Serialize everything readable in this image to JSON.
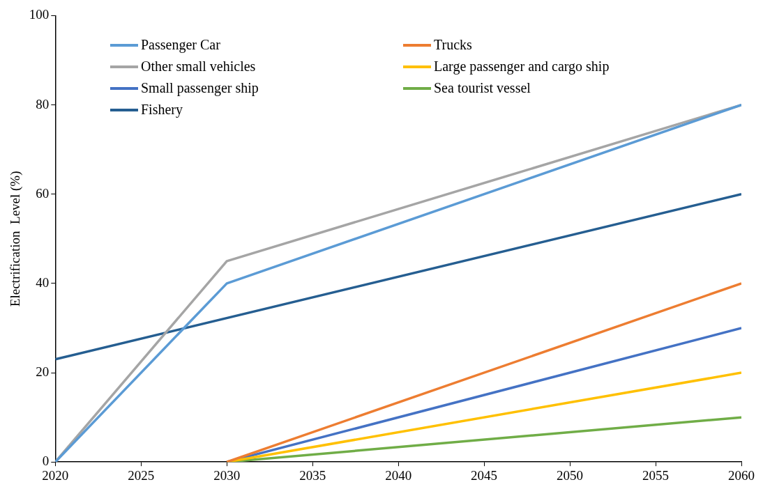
{
  "chart_data": {
    "type": "line",
    "ylabel": "Electrification  Level (%)",
    "xlim": [
      2020,
      2060
    ],
    "xticks": [
      2020,
      2025,
      2030,
      2035,
      2040,
      2045,
      2050,
      2055,
      2060
    ],
    "ylim": [
      0,
      100
    ],
    "yticks": [
      0,
      20,
      40,
      60,
      80,
      100
    ],
    "grid": false,
    "legend": "top left",
    "marker": "none",
    "line_style": "solid",
    "series": [
      {
        "name": "Passenger Car",
        "color": "#5b9bd5",
        "x": [
          2020,
          2030,
          2060
        ],
        "values": [
          0,
          40,
          80
        ]
      },
      {
        "name": "Trucks",
        "color": "#ed7d31",
        "x": [
          2030,
          2060
        ],
        "values": [
          0,
          40
        ]
      },
      {
        "name": "Other small vehicles",
        "color": "#a5a5a5",
        "x": [
          2020,
          2030,
          2060
        ],
        "values": [
          0,
          45,
          80
        ]
      },
      {
        "name": "Large passenger and cargo ship",
        "color": "#ffc000",
        "x": [
          2030,
          2060
        ],
        "values": [
          0,
          20
        ]
      },
      {
        "name": "Small passenger ship",
        "color": "#4472c4",
        "x": [
          2030,
          2060
        ],
        "values": [
          0,
          30
        ]
      },
      {
        "name": "Sea tourist vessel",
        "color": "#70ad47",
        "x": [
          2030,
          2060
        ],
        "values": [
          0,
          10
        ]
      },
      {
        "name": "Fishery",
        "color": "#255e91",
        "x": [
          2020,
          2060
        ],
        "values": [
          23,
          60
        ]
      }
    ]
  }
}
